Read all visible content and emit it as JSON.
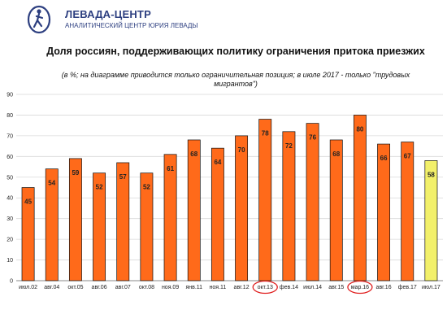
{
  "header": {
    "brand": "ЛЕВАДА-ЦЕНТР",
    "subtitle": "АНАЛИТИЧЕСКИЙ ЦЕНТР ЮРИЯ ЛЕВАДЫ",
    "logo_icon": "levada-logo-icon"
  },
  "colors": {
    "bar": "#ff6a1a",
    "bar_highlight": "#f2f06a",
    "bar_stroke": "#111111",
    "circle": "#e02020",
    "brand": "#2d3f80",
    "grid": "#d9d9d9"
  },
  "chart_data": {
    "type": "bar",
    "title": "Доля россиян, поддерживающих политику ограничения притока приезжих",
    "subtitle": "(в %; на диаграмме приводится только ограничительная позиция; в июле 2017 - только \"трудовых мигрантов\")",
    "categories": [
      "июл.02",
      "авг.04",
      "окт.05",
      "авг.06",
      "авг.07",
      "окт.08",
      "ноя.09",
      "янв.11",
      "ноя.11",
      "авг.12",
      "окт.13",
      "фев.14",
      "июл.14",
      "авг.15",
      "мар.16",
      "авг.16",
      "фев.17",
      "июл.17"
    ],
    "values": [
      45,
      54,
      59,
      52,
      57,
      52,
      61,
      68,
      64,
      70,
      78,
      72,
      76,
      68,
      80,
      66,
      67,
      58
    ],
    "highlighted": [
      "июл.17"
    ],
    "circled": [
      "окт.13",
      "мар.16"
    ],
    "ylim": [
      0,
      90
    ],
    "yticks": [
      0,
      10,
      20,
      30,
      40,
      50,
      60,
      70,
      80,
      90
    ],
    "grid": true,
    "legend": false,
    "xlabel": "",
    "ylabel": ""
  }
}
